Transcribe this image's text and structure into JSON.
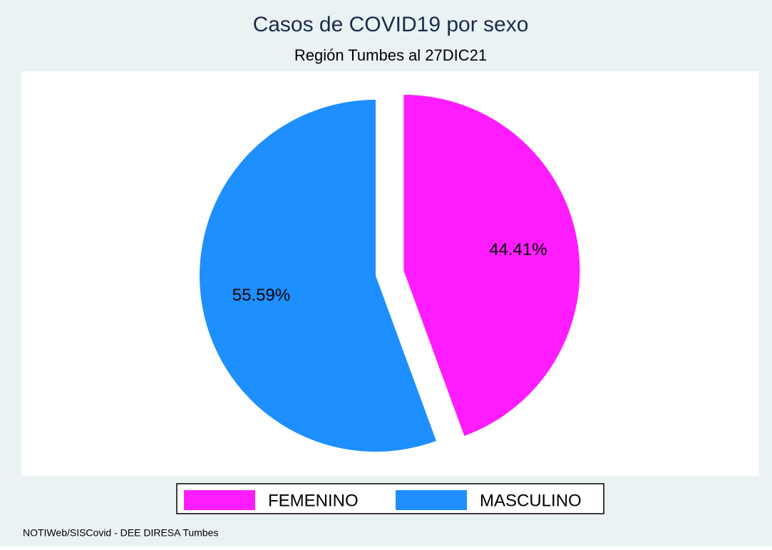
{
  "chart_data": {
    "type": "pie",
    "title": "Casos de COVID19 por sexo",
    "subtitle": "Región Tumbes al 27DIC21",
    "categories": [
      "FEMENINO",
      "MASCULINO"
    ],
    "values": [
      44.41,
      55.59
    ],
    "value_labels": [
      "44.41%",
      "55.59%"
    ],
    "colors": [
      "#ff1cff",
      "#1e8fff"
    ],
    "exploded": [
      true,
      false
    ],
    "legend": "bottom",
    "source": "NOTIWeb/SISCovid - DEE DIRESA Tumbes"
  }
}
